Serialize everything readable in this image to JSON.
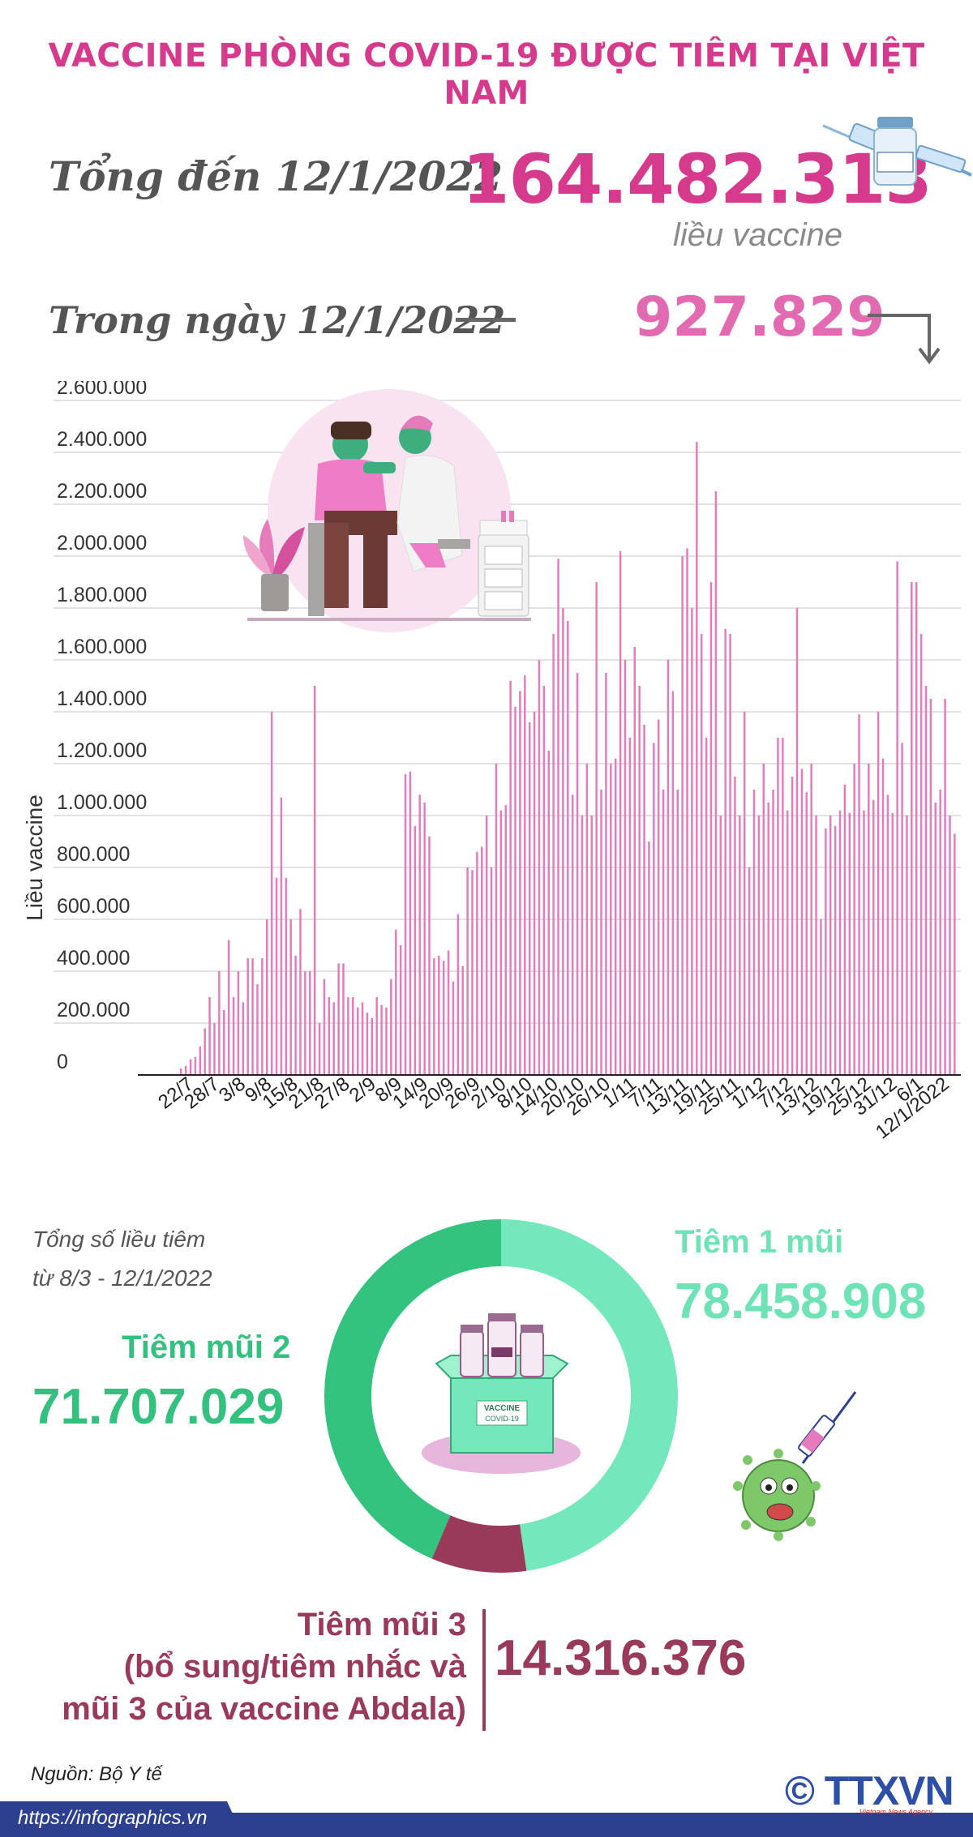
{
  "title": "VACCINE PHÒNG COVID-19 ĐƯỢC TIÊM TẠI VIỆT NAM",
  "summary": {
    "total_label": "Tổng đến 12/1/2022",
    "total_value": "164.482.313",
    "total_unit": "liều vaccine",
    "day_label": "Trong ngày 12/1/2022",
    "day_value": "927.829"
  },
  "chart_data": {
    "type": "bar",
    "ylabel": "Liều vaccine",
    "ylim": [
      0,
      2600000
    ],
    "yticks": [
      "0",
      "200.000",
      "400.000",
      "600.000",
      "800.000",
      "1.000.000",
      "1.200.000",
      "1.400.000",
      "1.600.000",
      "1.800.000",
      "2.000.000",
      "2.200.000",
      "2.400.000",
      "2.600.000"
    ],
    "xticks": [
      "22/7",
      "28/7",
      "3/8",
      "9/8",
      "15/8",
      "21/8",
      "27/8",
      "2/9",
      "8/9",
      "14/9",
      "20/9",
      "26/9",
      "2/10",
      "8/10",
      "14/10",
      "20/10",
      "26/10",
      "1/11",
      "7/11",
      "13/11",
      "19/11",
      "25/11",
      "1/12",
      "7/12",
      "13/12",
      "19/12",
      "25/12",
      "31/12",
      "6/1",
      "12/1/2022"
    ],
    "values": [
      25000,
      35000,
      60000,
      70000,
      110000,
      180000,
      300000,
      200000,
      400000,
      250000,
      520000,
      300000,
      400000,
      280000,
      450000,
      450000,
      350000,
      450000,
      600000,
      1400000,
      760000,
      1070000,
      760000,
      600000,
      460000,
      640000,
      400000,
      400000,
      1500000,
      200000,
      370000,
      300000,
      280000,
      430000,
      430000,
      300000,
      300000,
      260000,
      280000,
      240000,
      220000,
      300000,
      270000,
      260000,
      370000,
      560000,
      500000,
      1160000,
      1170000,
      960000,
      1080000,
      1050000,
      920000,
      450000,
      460000,
      440000,
      480000,
      360000,
      620000,
      420000,
      800000,
      790000,
      860000,
      880000,
      1000000,
      800000,
      1200000,
      1020000,
      1040000,
      1520000,
      1420000,
      1480000,
      1540000,
      1360000,
      1400000,
      1600000,
      1500000,
      1250000,
      1700000,
      1990000,
      1800000,
      1750000,
      1080000,
      1550000,
      1000000,
      1200000,
      1000000,
      1900000,
      1100000,
      1550000,
      1200000,
      1220000,
      2020000,
      1600000,
      1300000,
      1650000,
      1500000,
      1350000,
      900000,
      1280000,
      1370000,
      1100000,
      1600000,
      1480000,
      1100000,
      2000000,
      2030000,
      1800000,
      2440000,
      1700000,
      1300000,
      1900000,
      2250000,
      1000000,
      1720000,
      1700000,
      1150000,
      1000000,
      1400000,
      800000,
      1100000,
      1000000,
      1200000,
      1050000,
      1100000,
      1300000,
      1300000,
      1020000,
      1150000,
      1800000,
      1180000,
      1090000,
      1200000,
      1000000,
      600000,
      950000,
      1000000,
      960000,
      1020000,
      1120000,
      1010000,
      1200000,
      1390000,
      1020000,
      1200000,
      1060000,
      1400000,
      1220000,
      1080000,
      1010000,
      1980000,
      1280000,
      1000000,
      1900000,
      1900000,
      1700000,
      1500000,
      1450000,
      1050000,
      1100000,
      1450000,
      1000000,
      930000
    ],
    "xgrid": false,
    "ygrid": true
  },
  "donut": {
    "note_line1": "Tổng số liều tiêm",
    "note_line2": "từ 8/3 - 12/1/2022",
    "dose1_label": "Tiêm 1 mũi",
    "dose1_value": "78.458.908",
    "dose2_label": "Tiêm mũi 2",
    "dose2_value": "71.707.029",
    "dose3_line1": "Tiêm mũi 3",
    "dose3_line2": "(bổ sung/tiêm nhắc và",
    "dose3_line3": "mũi 3 của vaccine Abdala)",
    "dose3_value": "14.316.376",
    "segments": [
      {
        "name": "Tiêm 1 mũi",
        "value": 78458908,
        "color": "#74e8bb"
      },
      {
        "name": "Tiêm mũi 3",
        "value": 14316376,
        "color": "#9a3a5a"
      },
      {
        "name": "Tiêm mũi 2",
        "value": 71707029,
        "color": "#34c37f"
      }
    ],
    "box_label1": "VACCINE",
    "box_label2": "COVID-19"
  },
  "footer": {
    "source": "Nguồn: Bộ Y tế",
    "url": "https://infographics.vn",
    "logo": "© TTXVN",
    "logo_sub": "Vietnam News Agency"
  },
  "colors": {
    "accent": "#d63a8d",
    "bar": "#e47cbc",
    "dose1": "#74e8bb",
    "dose2": "#34c37f",
    "dose3": "#9a3a5a",
    "footer": "#2d3f8f"
  }
}
